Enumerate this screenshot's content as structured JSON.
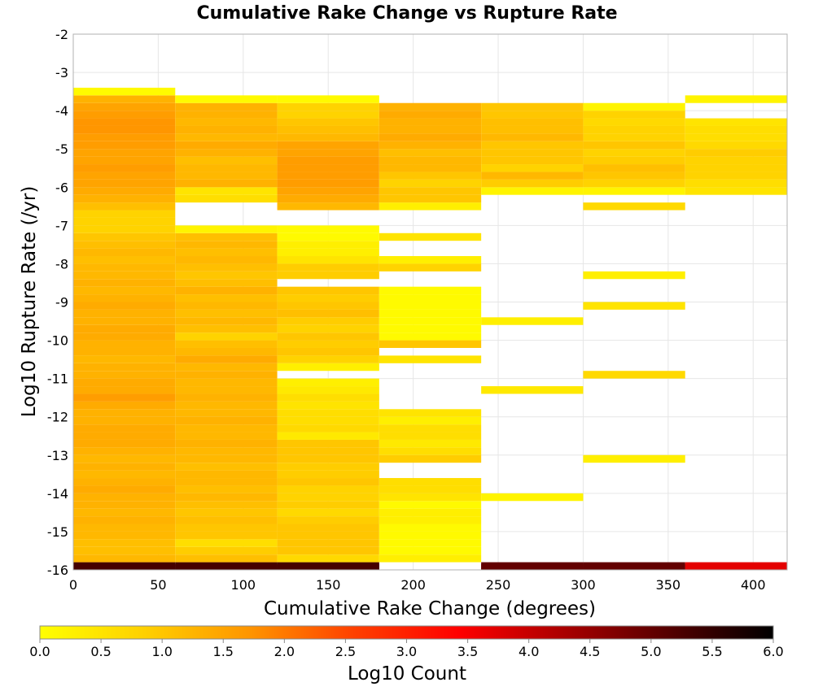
{
  "chart_data": {
    "type": "heatmap",
    "title": "Cumulative Rake Change vs Rupture Rate",
    "xlabel": "Cumulative Rake Change (degrees)",
    "ylabel": "Log10 Rupture Rate (/yr)",
    "xlim": [
      0,
      420
    ],
    "ylim": [
      -16,
      -2
    ],
    "x_ticks": [
      "0",
      "50",
      "100",
      "150",
      "200",
      "250",
      "300",
      "350",
      "400"
    ],
    "y_ticks": [
      "-2",
      "-3",
      "-4",
      "-5",
      "-6",
      "-7",
      "-8",
      "-9",
      "-10",
      "-11",
      "-12",
      "-13",
      "-14",
      "-15",
      "-16"
    ],
    "grid": true,
    "x_bin_width": 60,
    "y_bin_width": 0.2,
    "colorbar": {
      "label": "Log10 Count",
      "range": [
        0,
        6
      ],
      "ticks": [
        "0.0",
        "0.5",
        "1.0",
        "1.5",
        "2.0",
        "2.5",
        "3.0",
        "3.5",
        "4.0",
        "4.5",
        "5.0",
        "5.5",
        "6.0"
      ],
      "colors": [
        "#ffff00",
        "#ffd000",
        "#ff9500",
        "#ff4000",
        "#ff0000",
        "#aa0000",
        "#550000",
        "#000000"
      ]
    },
    "columns": [
      {
        "x_start": 0,
        "cells": [
          [
            -16.0,
            5.3
          ],
          [
            -15.8,
            1.2
          ],
          [
            -15.6,
            1.1
          ],
          [
            -15.4,
            1.1
          ],
          [
            -15.2,
            1.2
          ],
          [
            -15.0,
            1.2
          ],
          [
            -14.8,
            1.3
          ],
          [
            -14.6,
            1.2
          ],
          [
            -14.4,
            1.3
          ],
          [
            -14.2,
            1.3
          ],
          [
            -14.0,
            1.4
          ],
          [
            -13.8,
            1.3
          ],
          [
            -13.6,
            1.2
          ],
          [
            -13.4,
            1.3
          ],
          [
            -13.2,
            1.2
          ],
          [
            -13.0,
            1.3
          ],
          [
            -12.8,
            1.4
          ],
          [
            -12.6,
            1.4
          ],
          [
            -12.4,
            1.4
          ],
          [
            -12.2,
            1.3
          ],
          [
            -12.0,
            1.3
          ],
          [
            -11.8,
            1.4
          ],
          [
            -11.6,
            1.6
          ],
          [
            -11.4,
            1.4
          ],
          [
            -11.2,
            1.4
          ],
          [
            -11.0,
            1.3
          ],
          [
            -10.8,
            1.3
          ],
          [
            -10.6,
            1.2
          ],
          [
            -10.4,
            1.3
          ],
          [
            -10.2,
            1.3
          ],
          [
            -10.0,
            1.4
          ],
          [
            -9.8,
            1.4
          ],
          [
            -9.6,
            1.3
          ],
          [
            -9.4,
            1.3
          ],
          [
            -9.2,
            1.4
          ],
          [
            -9.0,
            1.3
          ],
          [
            -8.8,
            1.2
          ],
          [
            -8.6,
            1.3
          ],
          [
            -8.4,
            1.2
          ],
          [
            -8.2,
            1.2
          ],
          [
            -8.0,
            1.1
          ],
          [
            -7.8,
            1.2
          ],
          [
            -7.6,
            1.1
          ],
          [
            -7.4,
            1.0
          ],
          [
            -7.2,
            0.8
          ],
          [
            -7.0,
            0.8
          ],
          [
            -6.8,
            0.8
          ],
          [
            -6.6,
            1.1
          ],
          [
            -6.4,
            1.3
          ],
          [
            -6.2,
            1.4
          ],
          [
            -6.0,
            1.5
          ],
          [
            -5.8,
            1.5
          ],
          [
            -5.6,
            1.6
          ],
          [
            -5.4,
            1.5
          ],
          [
            -5.2,
            1.5
          ],
          [
            -5.0,
            1.6
          ],
          [
            -4.8,
            1.6
          ],
          [
            -4.6,
            1.7
          ],
          [
            -4.4,
            1.7
          ],
          [
            -4.2,
            1.6
          ],
          [
            -4.0,
            1.5
          ],
          [
            -3.8,
            1.3
          ],
          [
            -3.6,
            0.1
          ]
        ]
      },
      {
        "x_start": 60,
        "cells": [
          [
            -16.0,
            5.3
          ],
          [
            -15.8,
            1.1
          ],
          [
            -15.6,
            0.9
          ],
          [
            -15.4,
            0.6
          ],
          [
            -15.2,
            1.0
          ],
          [
            -15.0,
            1.0
          ],
          [
            -14.8,
            1.1
          ],
          [
            -14.6,
            1.0
          ],
          [
            -14.4,
            1.1
          ],
          [
            -14.2,
            1.2
          ],
          [
            -14.0,
            1.1
          ],
          [
            -13.8,
            1.2
          ],
          [
            -13.6,
            1.2
          ],
          [
            -13.4,
            1.1
          ],
          [
            -13.2,
            1.2
          ],
          [
            -13.0,
            1.2
          ],
          [
            -12.8,
            1.3
          ],
          [
            -12.6,
            1.2
          ],
          [
            -12.4,
            1.2
          ],
          [
            -12.2,
            1.3
          ],
          [
            -12.0,
            1.2
          ],
          [
            -11.8,
            1.2
          ],
          [
            -11.6,
            1.3
          ],
          [
            -11.4,
            1.2
          ],
          [
            -11.2,
            1.2
          ],
          [
            -11.0,
            1.3
          ],
          [
            -10.8,
            1.2
          ],
          [
            -10.6,
            1.4
          ],
          [
            -10.4,
            1.2
          ],
          [
            -10.2,
            1.1
          ],
          [
            -10.0,
            0.8
          ],
          [
            -9.8,
            1.1
          ],
          [
            -9.6,
            1.2
          ],
          [
            -9.4,
            1.1
          ],
          [
            -9.2,
            1.2
          ],
          [
            -9.0,
            1.1
          ],
          [
            -8.8,
            1.3
          ],
          [
            -8.6,
            1.1
          ],
          [
            -8.4,
            1.0
          ],
          [
            -8.2,
            1.1
          ],
          [
            -8.0,
            1.2
          ],
          [
            -7.8,
            1.1
          ],
          [
            -7.6,
            1.2
          ],
          [
            -7.4,
            1.1
          ],
          [
            -7.2,
            0.2
          ],
          [
            -6.4,
            0.6
          ],
          [
            -6.2,
            0.5
          ],
          [
            -6.0,
            1.3
          ],
          [
            -5.8,
            1.2
          ],
          [
            -5.6,
            1.2
          ],
          [
            -5.4,
            1.1
          ],
          [
            -5.2,
            1.3
          ],
          [
            -5.0,
            1.4
          ],
          [
            -4.8,
            1.2
          ],
          [
            -4.6,
            1.3
          ],
          [
            -4.4,
            1.2
          ],
          [
            -4.2,
            1.3
          ],
          [
            -4.0,
            1.3
          ],
          [
            -3.8,
            0.1
          ]
        ]
      },
      {
        "x_start": 120,
        "cells": [
          [
            -16.0,
            5.3
          ],
          [
            -15.8,
            0.7
          ],
          [
            -15.6,
            1.0
          ],
          [
            -15.4,
            1.0
          ],
          [
            -15.2,
            1.0
          ],
          [
            -15.0,
            1.0
          ],
          [
            -14.8,
            0.9
          ],
          [
            -14.6,
            0.7
          ],
          [
            -14.4,
            0.9
          ],
          [
            -14.2,
            0.8
          ],
          [
            -14.0,
            0.8
          ],
          [
            -13.8,
            1.0
          ],
          [
            -13.6,
            0.9
          ],
          [
            -13.4,
            0.9
          ],
          [
            -13.2,
            1.0
          ],
          [
            -13.0,
            1.0
          ],
          [
            -12.8,
            1.0
          ],
          [
            -12.6,
            0.4
          ],
          [
            -12.4,
            0.7
          ],
          [
            -12.2,
            0.6
          ],
          [
            -12.0,
            0.6
          ],
          [
            -11.8,
            0.5
          ],
          [
            -11.6,
            0.6
          ],
          [
            -11.4,
            0.4
          ],
          [
            -11.2,
            0.3
          ],
          [
            -10.8,
            0.3
          ],
          [
            -10.6,
            0.8
          ],
          [
            -10.4,
            1.0
          ],
          [
            -10.2,
            0.9
          ],
          [
            -10.0,
            1.0
          ],
          [
            -9.8,
            0.8
          ],
          [
            -9.6,
            0.9
          ],
          [
            -9.4,
            1.1
          ],
          [
            -9.2,
            1.0
          ],
          [
            -9.0,
            0.9
          ],
          [
            -8.8,
            1.0
          ],
          [
            -8.4,
            0.9
          ],
          [
            -8.2,
            0.9
          ],
          [
            -8.0,
            0.5
          ],
          [
            -7.8,
            0.3
          ],
          [
            -7.6,
            0.3
          ],
          [
            -7.4,
            0.1
          ],
          [
            -7.2,
            0.1
          ],
          [
            -6.6,
            1.2
          ],
          [
            -6.4,
            1.4
          ],
          [
            -6.2,
            1.5
          ],
          [
            -6.0,
            1.6
          ],
          [
            -5.8,
            1.6
          ],
          [
            -5.6,
            1.6
          ],
          [
            -5.4,
            1.6
          ],
          [
            -5.2,
            1.5
          ],
          [
            -5.0,
            1.5
          ],
          [
            -4.8,
            1.2
          ],
          [
            -4.6,
            1.1
          ],
          [
            -4.4,
            1.0
          ],
          [
            -4.2,
            0.8
          ],
          [
            -4.0,
            0.8
          ],
          [
            -3.8,
            0.1
          ]
        ]
      },
      {
        "x_start": 180,
        "cells": [
          [
            -15.8,
            0.3
          ],
          [
            -15.6,
            0.1
          ],
          [
            -15.4,
            0.1
          ],
          [
            -15.2,
            0.1
          ],
          [
            -15.0,
            0.1
          ],
          [
            -14.8,
            0.3
          ],
          [
            -14.6,
            0.3
          ],
          [
            -14.4,
            0.1
          ],
          [
            -14.2,
            0.5
          ],
          [
            -14.0,
            0.6
          ],
          [
            -13.8,
            0.6
          ],
          [
            -13.2,
            0.9
          ],
          [
            -13.0,
            0.6
          ],
          [
            -12.8,
            0.4
          ],
          [
            -12.6,
            0.6
          ],
          [
            -12.4,
            0.6
          ],
          [
            -12.2,
            0.3
          ],
          [
            -12.0,
            0.5
          ],
          [
            -10.6,
            0.5
          ],
          [
            -10.2,
            1.0
          ],
          [
            -10.0,
            0.1
          ],
          [
            -9.8,
            0.1
          ],
          [
            -9.6,
            0.1
          ],
          [
            -9.4,
            0.1
          ],
          [
            -9.2,
            0.1
          ],
          [
            -9.0,
            0.1
          ],
          [
            -8.8,
            0.1
          ],
          [
            -8.2,
            0.8
          ],
          [
            -8.0,
            0.3
          ],
          [
            -7.4,
            0.5
          ],
          [
            -6.6,
            0.3
          ],
          [
            -6.4,
            1.0
          ],
          [
            -6.2,
            1.0
          ],
          [
            -6.0,
            0.8
          ],
          [
            -5.8,
            1.0
          ],
          [
            -5.6,
            1.2
          ],
          [
            -5.4,
            1.2
          ],
          [
            -5.2,
            1.1
          ],
          [
            -5.0,
            1.3
          ],
          [
            -4.8,
            1.4
          ],
          [
            -4.6,
            1.3
          ],
          [
            -4.4,
            1.3
          ],
          [
            -4.2,
            1.4
          ],
          [
            -4.0,
            1.3
          ]
        ]
      },
      {
        "x_start": 240,
        "cells": [
          [
            -16.0,
            5.0
          ],
          [
            -14.2,
            0.2
          ],
          [
            -11.4,
            0.4
          ],
          [
            -9.6,
            0.3
          ],
          [
            -6.2,
            0.2
          ],
          [
            -6.0,
            0.9
          ],
          [
            -5.8,
            1.2
          ],
          [
            -5.6,
            0.8
          ],
          [
            -5.4,
            1.0
          ],
          [
            -5.2,
            1.0
          ],
          [
            -5.0,
            1.0
          ],
          [
            -4.8,
            1.2
          ],
          [
            -4.6,
            1.1
          ],
          [
            -4.4,
            1.1
          ],
          [
            -4.2,
            1.0
          ],
          [
            -4.0,
            1.0
          ]
        ]
      },
      {
        "x_start": 300,
        "cells": [
          [
            -16.0,
            5.0
          ],
          [
            -13.2,
            0.3
          ],
          [
            -11.0,
            0.7
          ],
          [
            -9.2,
            0.5
          ],
          [
            -8.4,
            0.3
          ],
          [
            -6.6,
            0.7
          ],
          [
            -6.2,
            0.2
          ],
          [
            -6.0,
            0.8
          ],
          [
            -5.8,
            1.0
          ],
          [
            -5.6,
            1.1
          ],
          [
            -5.4,
            0.9
          ],
          [
            -5.2,
            0.8
          ],
          [
            -5.0,
            1.0
          ],
          [
            -4.8,
            0.8
          ],
          [
            -4.6,
            0.8
          ],
          [
            -4.4,
            0.7
          ],
          [
            -4.2,
            0.8
          ],
          [
            -4.0,
            0.2
          ]
        ]
      },
      {
        "x_start": 360,
        "cells": [
          [
            -16.0,
            3.7
          ],
          [
            -6.2,
            0.5
          ],
          [
            -6.0,
            0.6
          ],
          [
            -5.8,
            0.8
          ],
          [
            -5.6,
            0.8
          ],
          [
            -5.4,
            0.8
          ],
          [
            -5.2,
            0.9
          ],
          [
            -5.0,
            0.7
          ],
          [
            -4.8,
            0.6
          ],
          [
            -4.6,
            0.6
          ],
          [
            -4.4,
            0.5
          ],
          [
            -3.8,
            0.2
          ]
        ]
      }
    ]
  }
}
